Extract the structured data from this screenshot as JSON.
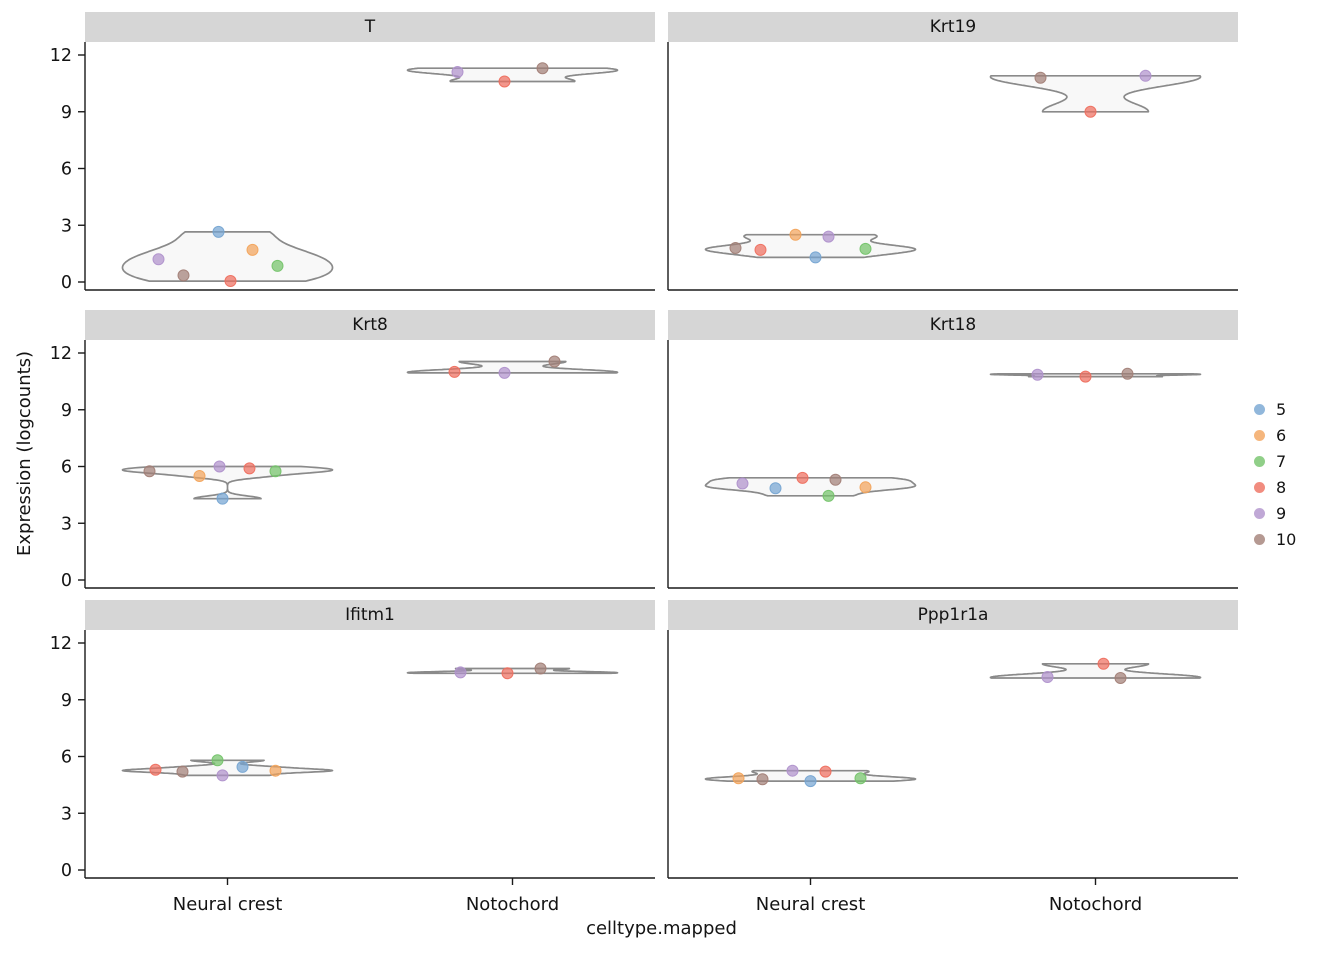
{
  "figure": {
    "ylabel": "Expression (logcounts)",
    "xlabel": "celltype.mapped"
  },
  "chart_data": {
    "type": "violin",
    "title": "",
    "xlabel": "celltype.mapped",
    "ylabel": "Expression (logcounts)",
    "ylim": [
      0,
      12.4
    ],
    "yticks": [
      0,
      3,
      6,
      9,
      12
    ],
    "categories": [
      "Neural crest",
      "Notochord"
    ],
    "facets": [
      "T",
      "Krt19",
      "Krt8",
      "Krt18",
      "Ifitm1",
      "Ppp1r1a"
    ],
    "legend": {
      "title": "",
      "position": "right",
      "labels": [
        "5",
        "6",
        "7",
        "8",
        "9",
        "10"
      ],
      "colors": {
        "5": "#76a5d2",
        "6": "#f2a45c",
        "7": "#74c36a",
        "8": "#ee6f5f",
        "9": "#b092cc",
        "10": "#a28077"
      }
    },
    "style": {
      "violin_fill": "#f7f7f7",
      "violin_stroke": "#8a8a8a",
      "axis_color": "#1a1a1a",
      "strip_bg": "#d6d6d6",
      "point_radius": 5.5
    },
    "panels": [
      {
        "title": "T",
        "groups": [
          {
            "category": "Neural crest",
            "points": [
              {
                "sample": "9",
                "y": 1.2,
                "dx": -69
              },
              {
                "sample": "10",
                "y": 0.35,
                "dx": -44
              },
              {
                "sample": "5",
                "y": 2.65,
                "dx": -9
              },
              {
                "sample": "8",
                "y": 0.05,
                "dx": 3
              },
              {
                "sample": "6",
                "y": 1.7,
                "dx": 25
              },
              {
                "sample": "7",
                "y": 0.85,
                "dx": 50
              }
            ]
          },
          {
            "category": "Notochord",
            "points": [
              {
                "sample": "9",
                "y": 11.1,
                "dx": -55
              },
              {
                "sample": "8",
                "y": 10.6,
                "dx": -8
              },
              {
                "sample": "10",
                "y": 11.3,
                "dx": 30
              }
            ]
          }
        ]
      },
      {
        "title": "Krt19",
        "groups": [
          {
            "category": "Neural crest",
            "points": [
              {
                "sample": "10",
                "y": 1.8,
                "dx": -75
              },
              {
                "sample": "8",
                "y": 1.7,
                "dx": -50
              },
              {
                "sample": "6",
                "y": 2.5,
                "dx": -15
              },
              {
                "sample": "5",
                "y": 1.3,
                "dx": 5
              },
              {
                "sample": "9",
                "y": 2.4,
                "dx": 18
              },
              {
                "sample": "7",
                "y": 1.75,
                "dx": 55
              }
            ]
          },
          {
            "category": "Notochord",
            "points": [
              {
                "sample": "10",
                "y": 10.8,
                "dx": -55
              },
              {
                "sample": "8",
                "y": 9.0,
                "dx": -5
              },
              {
                "sample": "9",
                "y": 10.9,
                "dx": 50
              }
            ]
          }
        ]
      },
      {
        "title": "Krt8",
        "groups": [
          {
            "category": "Neural crest",
            "points": [
              {
                "sample": "10",
                "y": 5.75,
                "dx": -78
              },
              {
                "sample": "6",
                "y": 5.5,
                "dx": -28
              },
              {
                "sample": "9",
                "y": 6.0,
                "dx": -8
              },
              {
                "sample": "5",
                "y": 4.3,
                "dx": -5
              },
              {
                "sample": "8",
                "y": 5.9,
                "dx": 22
              },
              {
                "sample": "7",
                "y": 5.75,
                "dx": 48
              }
            ]
          },
          {
            "category": "Notochord",
            "points": [
              {
                "sample": "8",
                "y": 11.0,
                "dx": -58
              },
              {
                "sample": "9",
                "y": 10.95,
                "dx": -8
              },
              {
                "sample": "10",
                "y": 11.55,
                "dx": 42
              }
            ]
          }
        ]
      },
      {
        "title": "Krt18",
        "groups": [
          {
            "category": "Neural crest",
            "points": [
              {
                "sample": "9",
                "y": 5.1,
                "dx": -68
              },
              {
                "sample": "5",
                "y": 4.85,
                "dx": -35
              },
              {
                "sample": "8",
                "y": 5.4,
                "dx": -8
              },
              {
                "sample": "7",
                "y": 4.45,
                "dx": 18
              },
              {
                "sample": "10",
                "y": 5.3,
                "dx": 25
              },
              {
                "sample": "6",
                "y": 4.9,
                "dx": 55
              }
            ]
          },
          {
            "category": "Notochord",
            "points": [
              {
                "sample": "9",
                "y": 10.85,
                "dx": -58
              },
              {
                "sample": "8",
                "y": 10.75,
                "dx": -10
              },
              {
                "sample": "10",
                "y": 10.9,
                "dx": 32
              }
            ]
          }
        ]
      },
      {
        "title": "Ifitm1",
        "groups": [
          {
            "category": "Neural crest",
            "points": [
              {
                "sample": "8",
                "y": 5.3,
                "dx": -72
              },
              {
                "sample": "10",
                "y": 5.2,
                "dx": -45
              },
              {
                "sample": "7",
                "y": 5.8,
                "dx": -10
              },
              {
                "sample": "9",
                "y": 5.0,
                "dx": -5
              },
              {
                "sample": "5",
                "y": 5.45,
                "dx": 15
              },
              {
                "sample": "6",
                "y": 5.25,
                "dx": 48
              }
            ]
          },
          {
            "category": "Notochord",
            "points": [
              {
                "sample": "9",
                "y": 10.45,
                "dx": -52
              },
              {
                "sample": "8",
                "y": 10.4,
                "dx": -5
              },
              {
                "sample": "10",
                "y": 10.65,
                "dx": 28
              }
            ]
          }
        ]
      },
      {
        "title": "Ppp1r1a",
        "groups": [
          {
            "category": "Neural crest",
            "points": [
              {
                "sample": "6",
                "y": 4.85,
                "dx": -72
              },
              {
                "sample": "10",
                "y": 4.8,
                "dx": -48
              },
              {
                "sample": "9",
                "y": 5.25,
                "dx": -18
              },
              {
                "sample": "5",
                "y": 4.7,
                "dx": 0
              },
              {
                "sample": "8",
                "y": 5.2,
                "dx": 15
              },
              {
                "sample": "7",
                "y": 4.85,
                "dx": 50
              }
            ]
          },
          {
            "category": "Notochord",
            "points": [
              {
                "sample": "9",
                "y": 10.2,
                "dx": -48
              },
              {
                "sample": "8",
                "y": 10.9,
                "dx": 8
              },
              {
                "sample": "10",
                "y": 10.15,
                "dx": 25
              }
            ]
          }
        ]
      }
    ]
  }
}
